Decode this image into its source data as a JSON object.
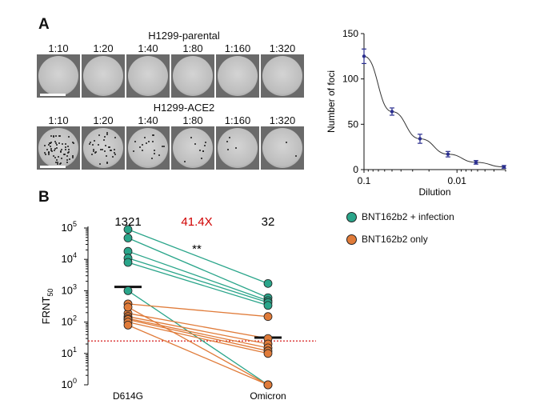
{
  "panel_a": {
    "letter": "A",
    "rows": [
      {
        "title": "H1299-parental",
        "dilutions": [
          "1:10",
          "1:20",
          "1:40",
          "1:80",
          "1:160",
          "1:320"
        ],
        "foci_visible": false
      },
      {
        "title": "H1299-ACE2",
        "dilutions": [
          "1:10",
          "1:20",
          "1:40",
          "1:80",
          "1:160",
          "1:320"
        ],
        "foci_visible": true
      }
    ]
  },
  "panel_b": {
    "letter": "B"
  },
  "chart_data": [
    {
      "type": "line",
      "xlabel": "Dilution",
      "ylabel": "Number of foci",
      "x_scale": "log",
      "x_reversed": true,
      "x_tick_labels": [
        "0.1",
        "0.01"
      ],
      "y_ticks": [
        0,
        50,
        100,
        150
      ],
      "ylim": [
        0,
        150
      ],
      "grid": false,
      "color": "#2b2f8f",
      "points": [
        {
          "x": 0.1,
          "y": 125,
          "err": 8
        },
        {
          "x": 0.05,
          "y": 64,
          "err": 4
        },
        {
          "x": 0.025,
          "y": 34,
          "err": 5
        },
        {
          "x": 0.0125,
          "y": 17,
          "err": 3
        },
        {
          "x": 0.00625,
          "y": 8,
          "err": 2
        },
        {
          "x": 0.003125,
          "y": 3,
          "err": 1.5
        }
      ]
    },
    {
      "type": "scatter",
      "ylabel": "FRNT",
      "ylabel_sub": "50",
      "y_scale": "log",
      "ylim": [
        1,
        100000
      ],
      "y_tick_base": "10",
      "y_tick_exponents": [
        "0",
        "1",
        "2",
        "3",
        "4",
        "5"
      ],
      "categories": [
        "D614G",
        "Omicron"
      ],
      "geomean": [
        1321,
        32
      ],
      "geomean_labels": [
        "1321",
        "32"
      ],
      "fold_change": "41.4X",
      "significance": "**",
      "threshold": 25,
      "threshold_color": "#d00000",
      "series": [
        {
          "name": "BNT162b2 + infection",
          "color": "#2aa58a",
          "pairs": [
            [
              90000,
              1700
            ],
            [
              48000,
              600
            ],
            [
              18000,
              480
            ],
            [
              11000,
              420
            ],
            [
              8000,
              340
            ],
            [
              1000,
              1
            ]
          ]
        },
        {
          "name": "BNT162b2 only",
          "color": "#e07b39",
          "pairs": [
            [
              380,
              150
            ],
            [
              190,
              30
            ],
            [
              150,
              20
            ],
            [
              130,
              15
            ],
            [
              120,
              12
            ],
            [
              100,
              10
            ],
            [
              80,
              1
            ],
            [
              300,
              1
            ]
          ]
        }
      ]
    }
  ]
}
